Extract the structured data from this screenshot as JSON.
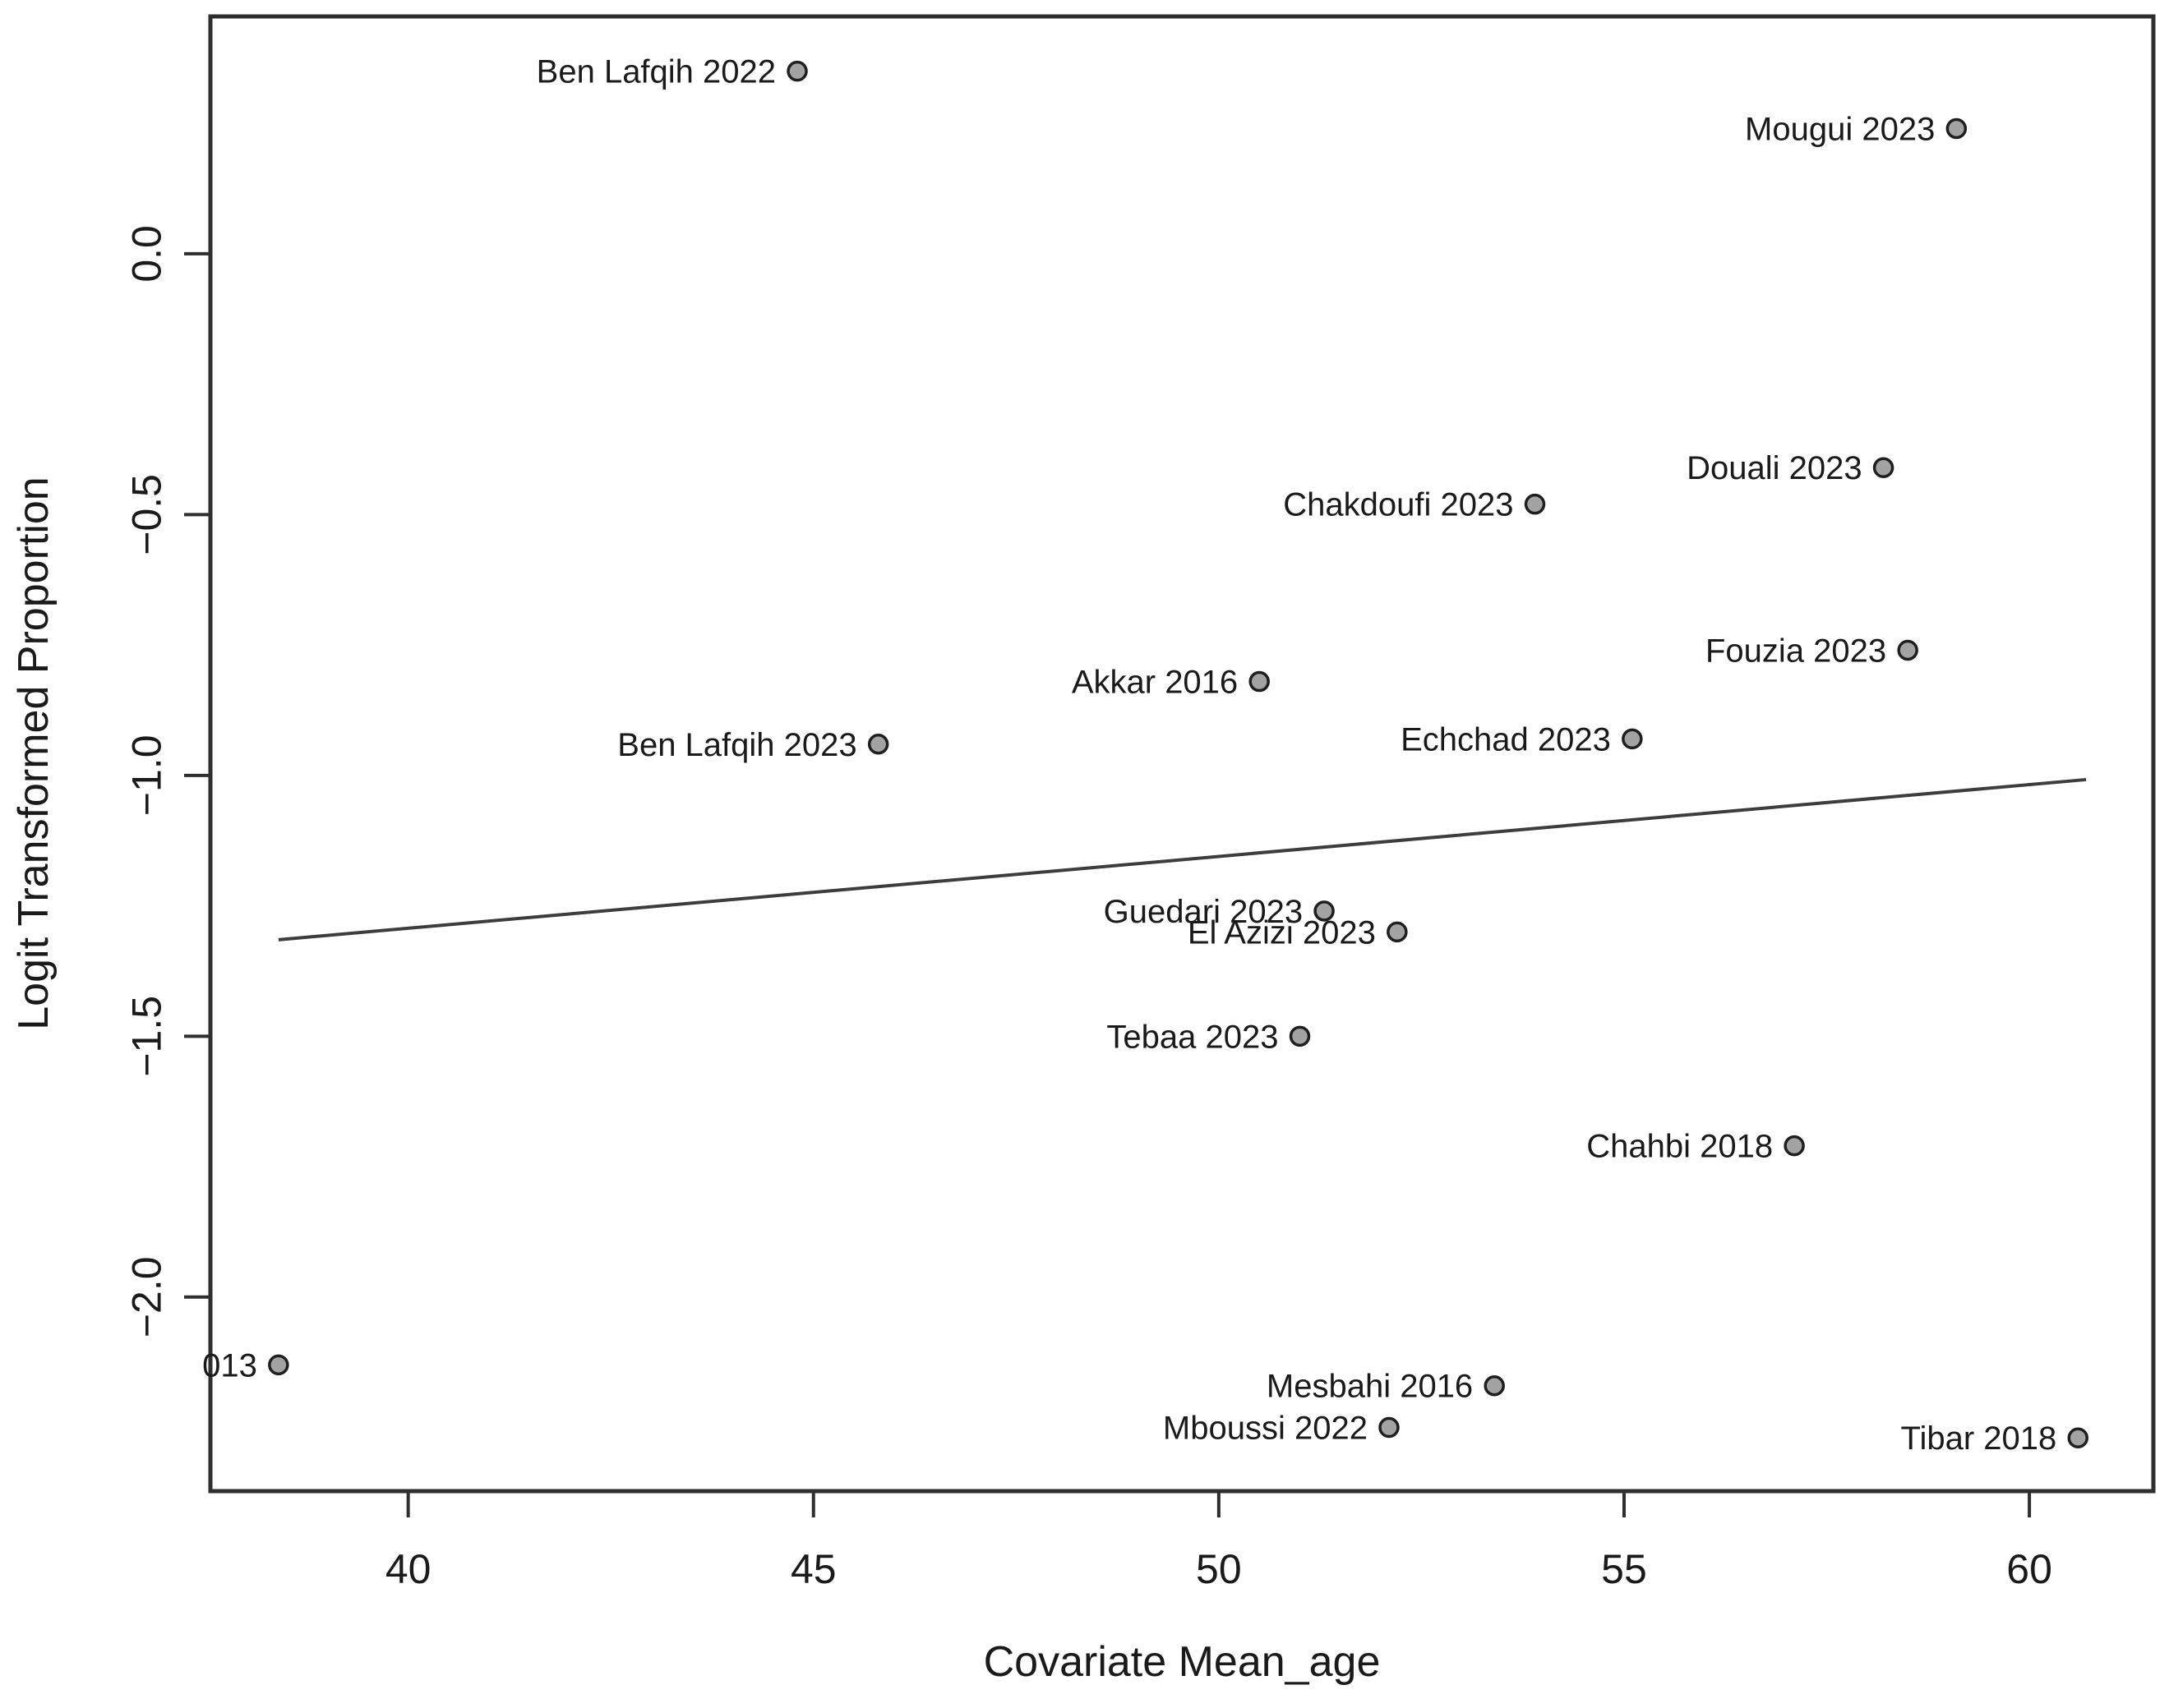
{
  "chart_data": {
    "type": "scatter",
    "title": "",
    "xlabel": "Covariate Mean_age",
    "ylabel": "Logit Transformed Proportion",
    "xlim": [
      37.56,
      61.53
    ],
    "ylim": [
      -2.372,
      0.455
    ],
    "grid": false,
    "legend": null,
    "marker": "circle",
    "xticks": [
      {
        "value": 40,
        "label": "40"
      },
      {
        "value": 45,
        "label": "45"
      },
      {
        "value": 50,
        "label": "50"
      },
      {
        "value": 55,
        "label": "55"
      },
      {
        "value": 60,
        "label": "60"
      }
    ],
    "yticks": [
      {
        "value": 0.0,
        "label": "0.0"
      },
      {
        "value": -0.5,
        "label": "−0.5"
      },
      {
        "value": -1.0,
        "label": "−1.0"
      },
      {
        "value": -1.5,
        "label": "−1.5"
      },
      {
        "value": -2.0,
        "label": "−2.0"
      }
    ],
    "points": [
      {
        "label": "Ben Lafqih 2022",
        "x": 44.8,
        "y": 0.35
      },
      {
        "label": "Mougui 2023",
        "x": 59.1,
        "y": 0.24
      },
      {
        "label": "Douali 2023",
        "x": 58.2,
        "y": -0.41
      },
      {
        "label": "Chakdoufi 2023",
        "x": 53.9,
        "y": -0.48
      },
      {
        "label": "Fouzia 2023",
        "x": 58.5,
        "y": -0.76
      },
      {
        "label": "Akkar 2016",
        "x": 50.5,
        "y": -0.82
      },
      {
        "label": "Echchad 2023",
        "x": 55.1,
        "y": -0.93
      },
      {
        "label": "Ben Lafqih 2023",
        "x": 45.8,
        "y": -0.94
      },
      {
        "label": "Guedari 2023",
        "x": 51.3,
        "y": -1.26
      },
      {
        "label": "El Azizi 2023",
        "x": 52.2,
        "y": -1.3
      },
      {
        "label": "Tebaa 2023",
        "x": 51.0,
        "y": -1.5
      },
      {
        "label": "Chahbi 2018",
        "x": 57.1,
        "y": -1.71
      },
      {
        "label": "013",
        "x": 38.4,
        "y": -2.13,
        "clipped": true
      },
      {
        "label": "Mesbahi 2016",
        "x": 53.4,
        "y": -2.17
      },
      {
        "label": "Mboussi 2022",
        "x": 52.1,
        "y": -2.25
      },
      {
        "label": "Tibar 2018",
        "x": 60.6,
        "y": -2.27
      }
    ],
    "regression_line": {
      "x1": 38.4,
      "y1": -1.315,
      "x2": 60.7,
      "y2": -1.008
    }
  },
  "style": {
    "background": "#ffffff",
    "axis_color": "#2e2e2e",
    "text_color": "#1a1a1a",
    "line_color": "#3d3d3d",
    "point_fill": "#a3a3a3",
    "point_stroke": "#1f1f1f"
  }
}
